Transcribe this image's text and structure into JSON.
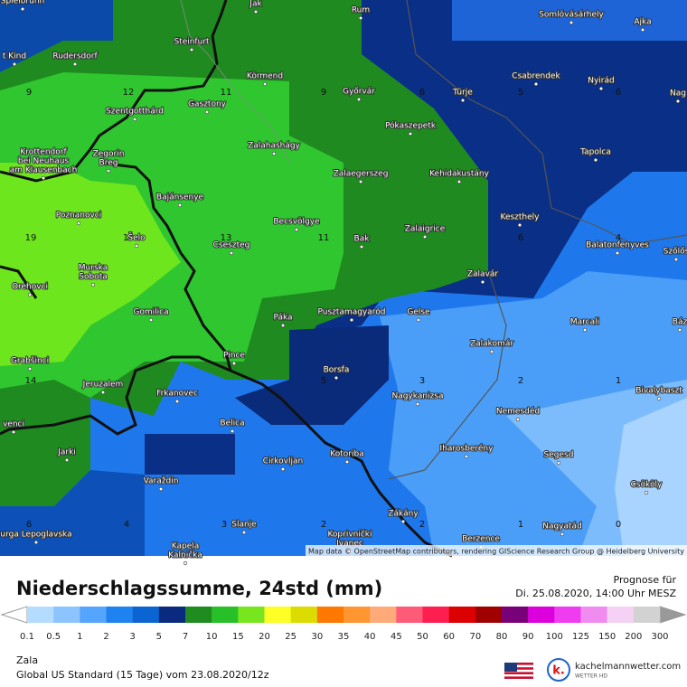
{
  "map": {
    "places": [
      [
        "Spielbrunn"
      ],
      [
        "Jak"
      ],
      [
        "Rum"
      ],
      [
        "Somlóvásárhely"
      ],
      [
        "Ajka"
      ],
      [
        "Steinfurt"
      ],
      [
        "t Kind"
      ],
      [
        "Rudersdorf"
      ],
      [
        "Körmend"
      ],
      [
        "Csabrendek"
      ],
      [
        "Nyirád"
      ],
      [
        "Nag"
      ],
      [
        "Gasztony"
      ],
      [
        "Győrvár"
      ],
      [
        "Türje"
      ],
      [
        "Szentgotthárd"
      ],
      [
        "Pókaszepetk"
      ],
      [
        "Zalahashágy"
      ],
      [
        "Tapolca"
      ],
      [
        "Zegorin",
        "Breg"
      ],
      [
        "Krottendorf",
        "bei Neuhaus",
        "am Klausenbach"
      ],
      [
        "Zalaegerszeg"
      ],
      [
        "Kehidakustány"
      ],
      [
        "Bajánsenye"
      ],
      [
        "Poznanovci"
      ],
      [
        "Keszthely"
      ],
      [
        "Becsvölgye"
      ],
      [
        "Zalaigrice"
      ],
      [
        "Šelo"
      ],
      [
        "Bak"
      ],
      [
        "Cseszteg"
      ],
      [
        "Balatonfenyves"
      ],
      [
        "Szőlős"
      ],
      [
        "Murska",
        "Sobota"
      ],
      [
        "Zalavár"
      ],
      [
        "Orehovci"
      ],
      [
        "Gomilica"
      ],
      [
        "Pusztamagyaród"
      ],
      [
        "Gelse"
      ],
      [
        "Páka"
      ],
      [
        "Marcali"
      ],
      [
        "Báz"
      ],
      [
        "Zalakomár"
      ],
      [
        "Pince"
      ],
      [
        "Grabšinci"
      ],
      [
        "Borsfa"
      ],
      [
        "Jeruzalem"
      ],
      [
        "Bivalybaszt"
      ],
      [
        "Frkanovec"
      ],
      [
        "Nagykanizsa"
      ],
      [
        "Nemesdéd"
      ],
      [
        "Belica"
      ],
      [
        "venci"
      ],
      [
        "Iharosberény"
      ],
      [
        "Jarki"
      ],
      [
        "Kotoriba"
      ],
      [
        "Segesd"
      ],
      [
        "Cirkovljan"
      ],
      [
        "Varaždin"
      ],
      [
        "Csököly"
      ],
      [
        "Zákány"
      ],
      [
        "Slanje"
      ],
      [
        "Nagyatád"
      ],
      [
        "urga Lepoglavska"
      ],
      [
        "Koprivnički",
        "Ivanec"
      ],
      [
        "Berzence"
      ],
      [
        "Kapela",
        "Kalnička"
      ]
    ],
    "grid_values": [
      9,
      12,
      11,
      9,
      6,
      5,
      6,
      19,
      1,
      13,
      11,
      6,
      4,
      14,
      5,
      3,
      2,
      1,
      6,
      4,
      3,
      2,
      2,
      1,
      0
    ],
    "attribution": "Map data © OpenStreetMap contributors, rendering GIScience Research Group @ Heidelberg University"
  },
  "header": {
    "title": "Niederschlagssumme, 24std (mm)",
    "forecast_label": "Prognose für",
    "forecast_time": "Di. 25.08.2020, 14:00 Uhr MESZ"
  },
  "legend": {
    "ticks": [
      0.1,
      0.5,
      1,
      2,
      3,
      5,
      7,
      10,
      15,
      20,
      25,
      30,
      35,
      40,
      45,
      50,
      60,
      70,
      80,
      90,
      100,
      125,
      150,
      200,
      300
    ]
  },
  "footer": {
    "region": "Zala",
    "model": "Global US Standard (15 Tage) vom 23.08.2020/12z",
    "logo_letter": "k.",
    "site": "kachelmannwetter.com",
    "tagline": "WETTER HD"
  }
}
